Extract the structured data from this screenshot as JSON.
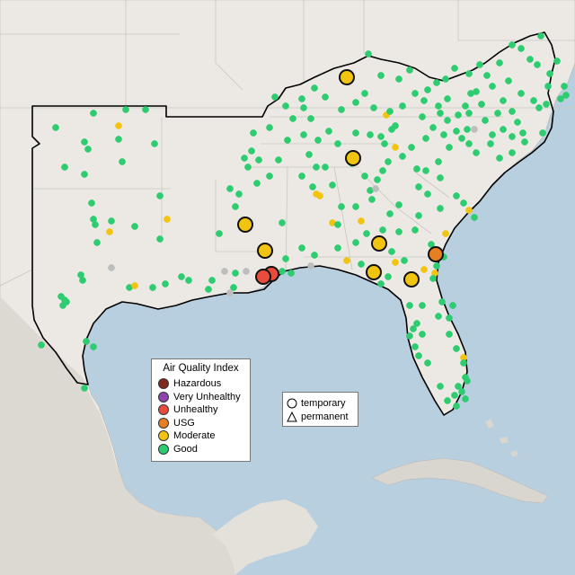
{
  "colors": {
    "ocean": "#b8cfe0",
    "land": "#ece9e4",
    "land_dark": "#dcd8d2",
    "cuba": "#d9d6d0",
    "border": "#c9c6c1",
    "region_outline": "#000000",
    "hazardous": "#7e2a1e",
    "very_unhealthy": "#8e44ad",
    "unhealthy": "#e74c3c",
    "usg": "#e67e22",
    "moderate": "#f1c40f",
    "good": "#2ecc71",
    "no_data": "#bdbdbd"
  },
  "aqi_legend": {
    "title": "Air Quality Index",
    "items": [
      {
        "label": "Hazardous",
        "color_key": "hazardous"
      },
      {
        "label": "Very Unhealthy",
        "color_key": "very_unhealthy"
      },
      {
        "label": "Unhealthy",
        "color_key": "unhealthy"
      },
      {
        "label": "USG",
        "color_key": "usg"
      },
      {
        "label": "Moderate",
        "color_key": "moderate"
      },
      {
        "label": "Good",
        "color_key": "good"
      }
    ]
  },
  "type_legend": {
    "temporary": "temporary",
    "permanent": "permanent"
  },
  "monitors": {
    "temporary": [
      {
        "aqi": "moderate"
      },
      {
        "aqi": "moderate"
      },
      {
        "aqi": "moderate"
      },
      {
        "aqi": "moderate"
      },
      {
        "aqi": "moderate"
      },
      {
        "aqi": "moderate"
      },
      {
        "aqi": "moderate"
      },
      {
        "aqi": "unhealthy"
      },
      {
        "aqi": "unhealthy"
      },
      {
        "aqi": "usg"
      }
    ]
  }
}
